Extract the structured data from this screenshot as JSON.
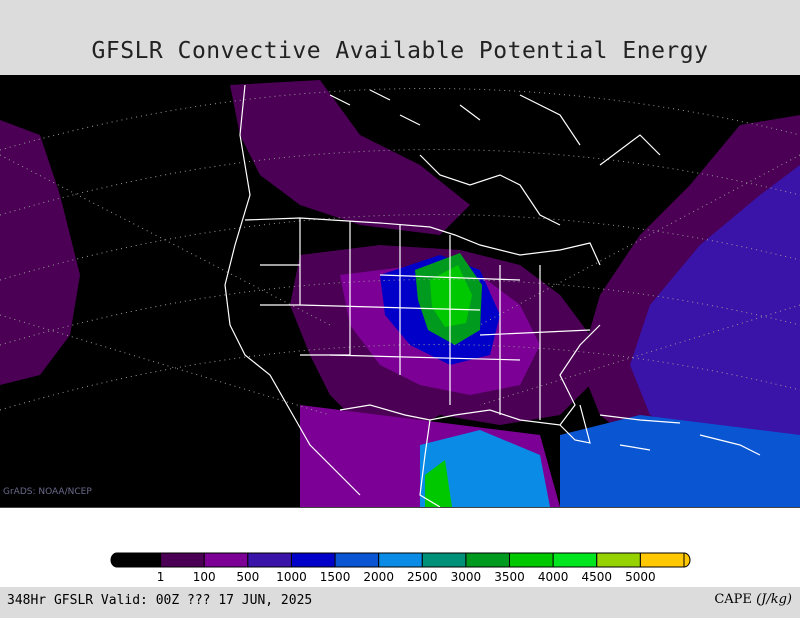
{
  "title": "GFSLR Convective Available Potential Energy",
  "credit": "GrADS: NOAA/NCEP",
  "valid_text": "348Hr GFSLR Valid: 00Z ??? 17 JUN, 2025",
  "units": {
    "name": "CAPE",
    "unit": "(J/kg)"
  },
  "legend": {
    "levels": [
      "1",
      "100",
      "500",
      "1000",
      "1500",
      "2000",
      "2500",
      "3000",
      "3500",
      "4000",
      "4500",
      "5000"
    ],
    "colors": [
      "#000000",
      "#4b0055",
      "#7d0096",
      "#3a14a8",
      "#0000c8",
      "#0a55d2",
      "#0a8ce6",
      "#009178",
      "#009b1e",
      "#00c800",
      "#00e61e",
      "#96d200",
      "#ffc800"
    ]
  },
  "colors": {
    "background": "#000000",
    "low_cape": "#4b0055",
    "moderate_cape": "#7d0096",
    "high_cape": "#00c800",
    "boundaries": "#ffffff"
  }
}
